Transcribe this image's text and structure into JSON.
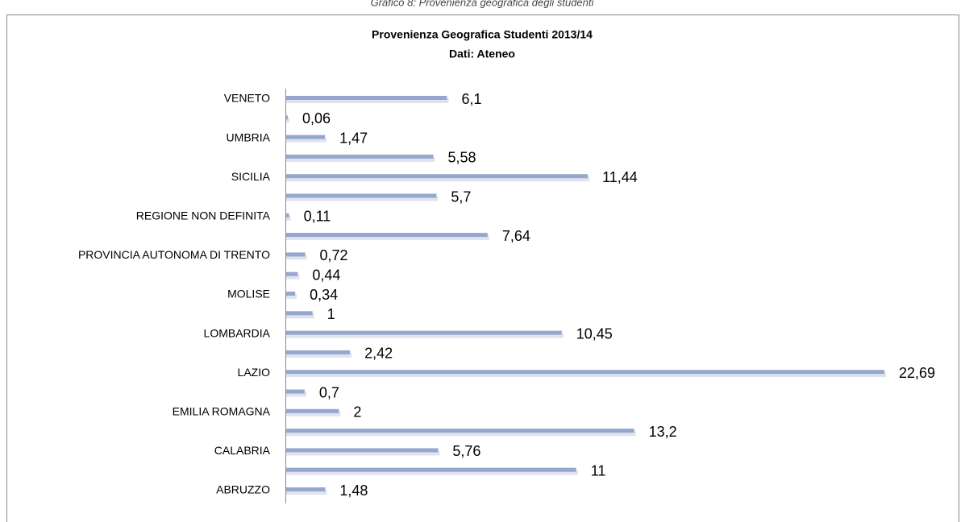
{
  "caption": "Grafico 8: Provenienza geografica degli studenti",
  "chart_data": {
    "type": "barh",
    "title": "Provenienza Geografica Studenti 2013/14",
    "subtitle": "Dati: Ateneo",
    "categories": [
      "VENETO",
      null,
      "UMBRIA",
      null,
      "SICILIA",
      null,
      "REGIONE NON DEFINITA",
      null,
      "PROVINCIA AUTONOMA DI TRENTO",
      null,
      "MOLISE",
      null,
      "LOMBARDIA",
      null,
      "LAZIO",
      null,
      "EMILIA ROMAGNA",
      null,
      "CALABRIA",
      null,
      "ABRUZZO"
    ],
    "values": [
      6.1,
      0.06,
      1.47,
      5.58,
      11.44,
      5.7,
      0.11,
      7.64,
      0.72,
      0.44,
      0.34,
      1,
      10.45,
      2.42,
      22.69,
      0.7,
      2,
      13.2,
      5.76,
      11,
      1.48
    ],
    "value_labels": [
      "6,1",
      "0,06",
      "1,47",
      "5,58",
      "11,44",
      "5,7",
      "0,11",
      "7,64",
      "0,72",
      "0,44",
      "0,34",
      "1",
      "10,45",
      "2,42",
      "22,69",
      "0,7",
      "2",
      "13,2",
      "5,76",
      "11",
      "1,48"
    ],
    "color": "#95a7cf"
  }
}
